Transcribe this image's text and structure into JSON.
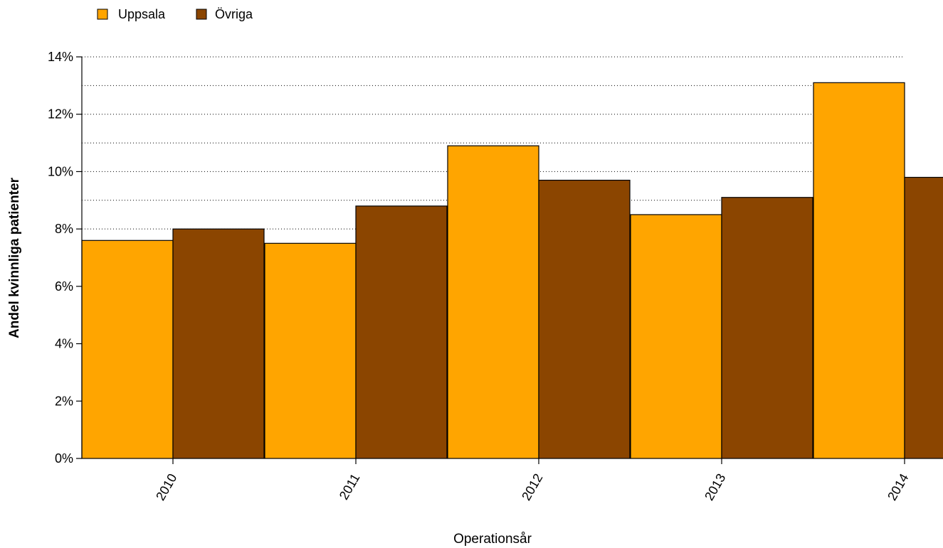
{
  "chart_data": {
    "type": "bar",
    "categories": [
      "2010",
      "2011",
      "2012",
      "2013",
      "2014"
    ],
    "series": [
      {
        "name": "Uppsala",
        "values": [
          7.6,
          7.5,
          10.9,
          8.5,
          13.1
        ],
        "color": "#FFA500"
      },
      {
        "name": "Övriga",
        "values": [
          8.0,
          8.8,
          9.7,
          9.1,
          9.8
        ],
        "color": "#8B4500"
      }
    ],
    "xlabel": "Operationsår",
    "ylabel": "Andel kvinnliga patienter",
    "ylim": [
      0,
      14
    ],
    "yticks": [
      "0%",
      "2%",
      "4%",
      "6%",
      "8%",
      "10%",
      "12%",
      "14%"
    ],
    "grid": true,
    "legend_position": "top-left"
  }
}
